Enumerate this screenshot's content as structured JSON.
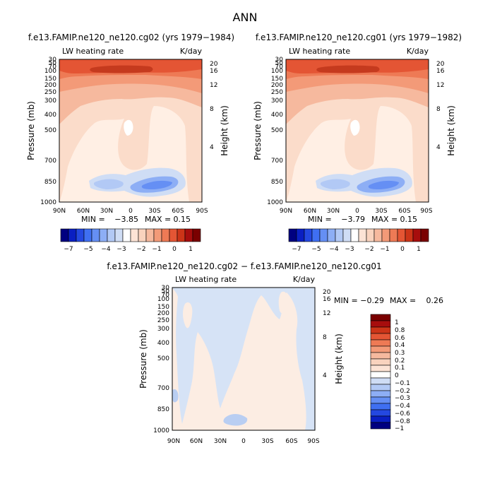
{
  "page_title": "ANN",
  "colors": {
    "cold": [
      "#000080",
      "#0A1FC2",
      "#2448E0",
      "#3F6FF2",
      "#658FF4",
      "#8DAEF5",
      "#B2C9F5",
      "#CFDDF5"
    ],
    "neutral": "#FFFFFF",
    "bg_light": "#FFEFE4",
    "warm": [
      "#FCE3D5",
      "#F9D3BE",
      "#F6B99E",
      "#F39A78",
      "#EE7A55",
      "#E45534",
      "#CC3418",
      "#A70D0D",
      "#7A0000"
    ]
  },
  "chart_data": [
    {
      "id": "top-left",
      "type": "contour",
      "title": "f.e13.FAMIP.ne120_ne120.cg02 (yrs 1979−1984)",
      "variable_label": "LW heating rate",
      "units_label": "K/day",
      "xlabel": "",
      "ylabel": "Pressure (mb)",
      "y2label": "Height (km)",
      "xlim": [
        90,
        -90
      ],
      "x_ticks": [
        "90N",
        "60N",
        "30N",
        "0",
        "30S",
        "60S",
        "90S"
      ],
      "y_ticks": [
        "30",
        "50",
        "70",
        "100",
        "150",
        "200",
        "250",
        "300",
        "400",
        "500",
        "700",
        "850",
        "1000"
      ],
      "y2_ticks": [
        "20",
        "16",
        "12",
        "8",
        "4"
      ],
      "ylim": [
        30,
        1000
      ],
      "min_label": "MIN =",
      "min_value": "−3.85",
      "max_label": "MAX =",
      "max_value": "0.15",
      "colorbar_labels": [
        "−7",
        "−5",
        "−4",
        "−3",
        "−2",
        "−1",
        "0",
        "1"
      ],
      "colorbar_orientation": "horizontal"
    },
    {
      "id": "top-right",
      "type": "contour",
      "title": "f.e13.FAMIP.ne120_ne120.cg01 (yrs 1979−1982)",
      "variable_label": "LW heating rate",
      "units_label": "K/day",
      "xlabel": "",
      "ylabel": "Pressure (mb)",
      "y2label": "Height (km)",
      "xlim": [
        90,
        -90
      ],
      "x_ticks": [
        "90N",
        "60N",
        "30N",
        "0",
        "30S",
        "60S",
        "90S"
      ],
      "y_ticks": [
        "30",
        "50",
        "70",
        "100",
        "150",
        "200",
        "250",
        "300",
        "400",
        "500",
        "700",
        "850",
        "1000"
      ],
      "y2_ticks": [
        "20",
        "16",
        "12",
        "8",
        "4"
      ],
      "ylim": [
        30,
        1000
      ],
      "min_label": "MIN =",
      "min_value": "−3.79",
      "max_label": "MAX =",
      "max_value": "0.15",
      "colorbar_labels": [
        "−7",
        "−5",
        "−4",
        "−3",
        "−2",
        "−1",
        "0",
        "1"
      ],
      "colorbar_orientation": "horizontal"
    },
    {
      "id": "bottom",
      "type": "contour",
      "title": "f.e13.FAMIP.ne120_ne120.cg02 − f.e13.FAMIP.ne120_ne120.cg01",
      "variable_label": "LW heating rate",
      "units_label": "K/day",
      "xlabel": "",
      "ylabel": "Pressure (mb)",
      "y2label": "Height (km)",
      "xlim": [
        90,
        -90
      ],
      "x_ticks": [
        "90N",
        "60N",
        "30N",
        "0",
        "30S",
        "60S",
        "90S"
      ],
      "y_ticks": [
        "30",
        "50",
        "70",
        "100",
        "150",
        "200",
        "250",
        "300",
        "400",
        "500",
        "700",
        "850",
        "1000"
      ],
      "y2_ticks": [
        "20",
        "16",
        "12",
        "8",
        "4"
      ],
      "ylim": [
        30,
        1000
      ],
      "min_label": "MIN =",
      "min_value": "−0.29",
      "max_label": "MAX =",
      "max_value": "0.26",
      "colorbar_labels": [
        "1",
        "0.8",
        "0.6",
        "0.4",
        "0.3",
        "0.2",
        "0.1",
        "0",
        "−0.1",
        "−0.2",
        "−0.3",
        "−0.4",
        "−0.6",
        "−0.8",
        "−1"
      ],
      "colorbar_orientation": "vertical"
    }
  ]
}
